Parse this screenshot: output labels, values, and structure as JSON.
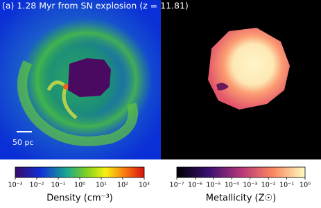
{
  "panel_title": "(a) 1.28 Myr from SN explosion (z = 11.81)",
  "scale_bar": "50 pc",
  "colorbars": [
    {
      "label": "Density (cm⁻³)",
      "ticks": [
        "10⁻³",
        "10⁻²",
        "10⁻¹",
        "10⁰",
        "10¹",
        "10²",
        "10³"
      ]
    },
    {
      "label": "Metallicity (Z☉)",
      "ticks": [
        "10⁻⁷",
        "10⁻⁶",
        "10⁻⁵",
        "10⁻⁴",
        "10⁻³",
        "10⁻²",
        "10⁻¹",
        "10⁰"
      ]
    }
  ]
}
